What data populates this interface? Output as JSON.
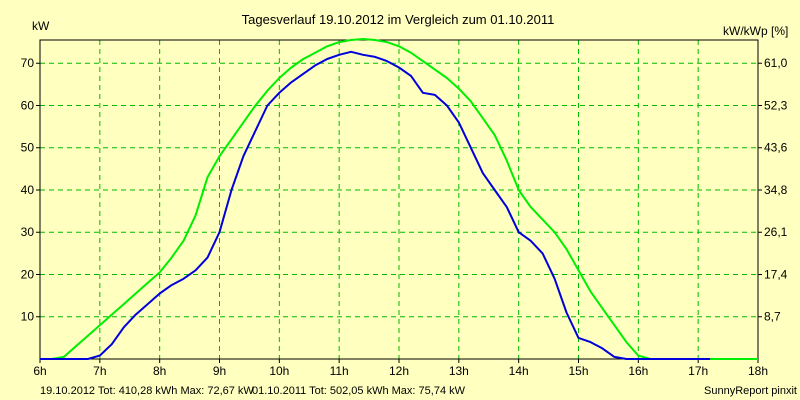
{
  "chart_data": {
    "type": "line",
    "title": "Tagesverlauf 19.10.2012 im Vergleich zum 01.10.2011",
    "ylabel_left": "kW",
    "ylabel_right": "kW/kWp [%]",
    "xlim": [
      6,
      18
    ],
    "ylim": [
      0,
      75.5
    ],
    "x_ticks": [
      6,
      7,
      8,
      9,
      10,
      11,
      12,
      13,
      14,
      15,
      16,
      17,
      18
    ],
    "x_tick_labels": [
      "6h",
      "7h",
      "8h",
      "9h",
      "10h",
      "11h",
      "12h",
      "13h",
      "14h",
      "15h",
      "16h",
      "17h",
      "18h"
    ],
    "y_ticks": [
      10,
      20,
      30,
      40,
      50,
      60,
      70
    ],
    "y_tick_labels": [
      "10",
      "20",
      "30",
      "40",
      "50",
      "60",
      "70"
    ],
    "y2_ticks": [
      10,
      20,
      30,
      40,
      50,
      60,
      70
    ],
    "y2_tick_labels": [
      "8,7",
      "17,4",
      "26,1",
      "34,8",
      "43,6",
      "52,3",
      "61,0"
    ],
    "grid": true,
    "series": [
      {
        "color": "#0000dd",
        "x": [
          6.0,
          6.4,
          6.6,
          6.8,
          7.0,
          7.2,
          7.4,
          7.6,
          7.8,
          8.0,
          8.2,
          8.4,
          8.6,
          8.8,
          9.0,
          9.2,
          9.4,
          9.6,
          9.8,
          10.0,
          10.2,
          10.4,
          10.6,
          10.8,
          11.0,
          11.2,
          11.4,
          11.6,
          11.8,
          12.0,
          12.2,
          12.4,
          12.6,
          12.8,
          13.0,
          13.2,
          13.4,
          13.6,
          13.8,
          14.0,
          14.2,
          14.4,
          14.6,
          14.8,
          15.0,
          15.2,
          15.4,
          15.6,
          15.8,
          16.0,
          16.2,
          16.4,
          16.6,
          16.8,
          17.0,
          17.2
        ],
        "y": [
          0,
          0,
          0,
          0,
          0.8,
          3.5,
          7.5,
          10.5,
          13,
          15.5,
          17.5,
          19,
          21,
          24,
          30,
          40,
          48,
          54,
          60,
          63,
          65.5,
          67.5,
          69.5,
          71,
          72,
          72.7,
          72,
          71.5,
          70.5,
          69,
          67,
          63,
          62.5,
          60,
          56,
          50,
          44,
          40,
          36,
          30,
          28,
          25,
          19,
          11,
          5,
          4,
          2.5,
          0.5,
          0,
          0,
          0,
          0,
          0,
          0,
          0,
          0
        ]
      },
      {
        "color": "#00ee00",
        "x": [
          6.0,
          6.2,
          6.4,
          6.6,
          6.8,
          7.0,
          7.2,
          7.4,
          7.6,
          7.8,
          8.0,
          8.2,
          8.4,
          8.6,
          8.8,
          9.0,
          9.2,
          9.4,
          9.6,
          9.8,
          10.0,
          10.2,
          10.4,
          10.6,
          10.8,
          11.0,
          11.2,
          11.4,
          11.6,
          11.8,
          12.0,
          12.2,
          12.4,
          12.6,
          12.8,
          13.0,
          13.2,
          13.4,
          13.6,
          13.8,
          14.0,
          14.2,
          14.4,
          14.6,
          14.8,
          15.0,
          15.2,
          15.4,
          15.6,
          15.8,
          16.0,
          16.2,
          16.4,
          16.6,
          16.8,
          17.0,
          17.2,
          17.4,
          17.6,
          17.8,
          18.0
        ],
        "y": [
          0,
          0,
          0.5,
          3,
          5.5,
          8,
          10.5,
          13,
          15.5,
          18,
          20.5,
          24,
          28,
          34,
          43,
          48,
          52,
          56,
          60,
          63.5,
          66.5,
          69,
          71,
          72.5,
          74,
          75,
          75.5,
          75.74,
          75.5,
          75,
          74,
          72.5,
          70.5,
          68.5,
          66.5,
          64,
          61,
          57,
          53,
          47,
          40,
          36,
          33,
          30,
          26,
          21,
          16,
          12,
          8,
          4,
          0.8,
          0,
          0,
          0,
          0,
          0,
          0,
          0,
          0,
          0,
          0
        ]
      }
    ],
    "legend": [
      {
        "text": "19.10.2012 Tot: 410,28 kWh Max: 72,67 kW",
        "color": "#0000dd"
      },
      {
        "text": "01.10.2011 Tot: 502,05 kWh Max: 75,74 kW",
        "color": "#00aa00"
      }
    ],
    "credit": "SunnyReport pinxit"
  }
}
